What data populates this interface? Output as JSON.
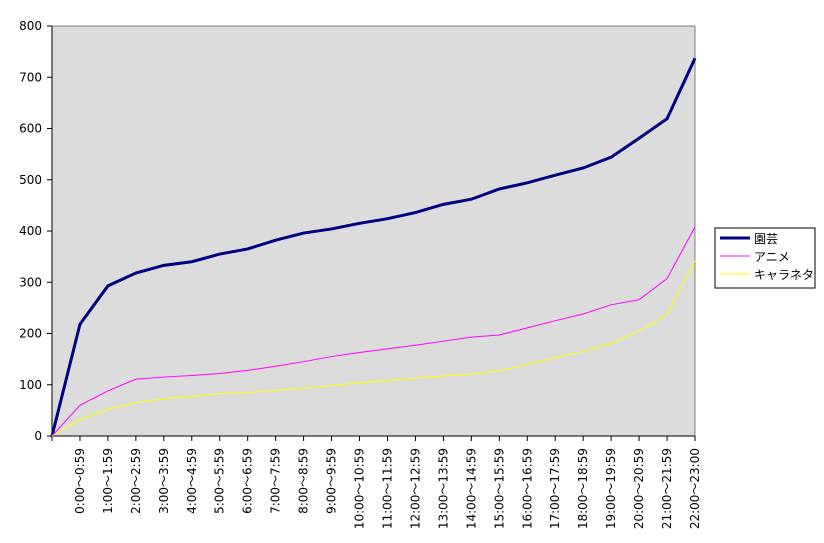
{
  "chart_data": {
    "type": "line",
    "categories": [
      null,
      "0:00～0:59",
      "1:00～1:59",
      "2:00～2:59",
      "3:00～3:59",
      "4:00～4:59",
      "5:00～5:59",
      "6:00～6:59",
      "7:00～7:59",
      "8:00～8:59",
      "9:00～9:59",
      "10:00～10:59",
      "11:00～11:59",
      "12:00～12:59",
      "13:00～13:59",
      "14:00～14:59",
      "15:00～15:59",
      "16:00～16:59",
      "17:00～17:59",
      "18:00～18:59",
      "19:00～19:59",
      "20:00～20:59",
      "21:00～21:59",
      "22:00～23:00"
    ],
    "series": [
      {
        "name": "園芸",
        "color": "#000080",
        "values": [
          0,
          218,
          293,
          318,
          333,
          340,
          355,
          365,
          382,
          396,
          404,
          415,
          424,
          436,
          452,
          462,
          482,
          494,
          509,
          523,
          544,
          581,
          619,
          737
        ]
      },
      {
        "name": "アニメ",
        "color": "#ff00ff",
        "values": [
          0,
          60,
          88,
          111,
          115,
          118,
          122,
          128,
          136,
          145,
          155,
          163,
          170,
          177,
          185,
          193,
          197,
          211,
          225,
          238,
          256,
          266,
          307,
          408
        ]
      },
      {
        "name": "キャラネタ",
        "color": "#ffff00",
        "values": [
          0,
          32,
          52,
          65,
          73,
          77,
          83,
          85,
          89,
          93,
          98,
          104,
          108,
          113,
          117,
          121,
          127,
          140,
          153,
          165,
          180,
          205,
          236,
          342
        ]
      }
    ],
    "ylim": [
      0,
      800
    ],
    "yticks": [
      0,
      100,
      200,
      300,
      400,
      500,
      600,
      700,
      800
    ],
    "legend": "right"
  }
}
